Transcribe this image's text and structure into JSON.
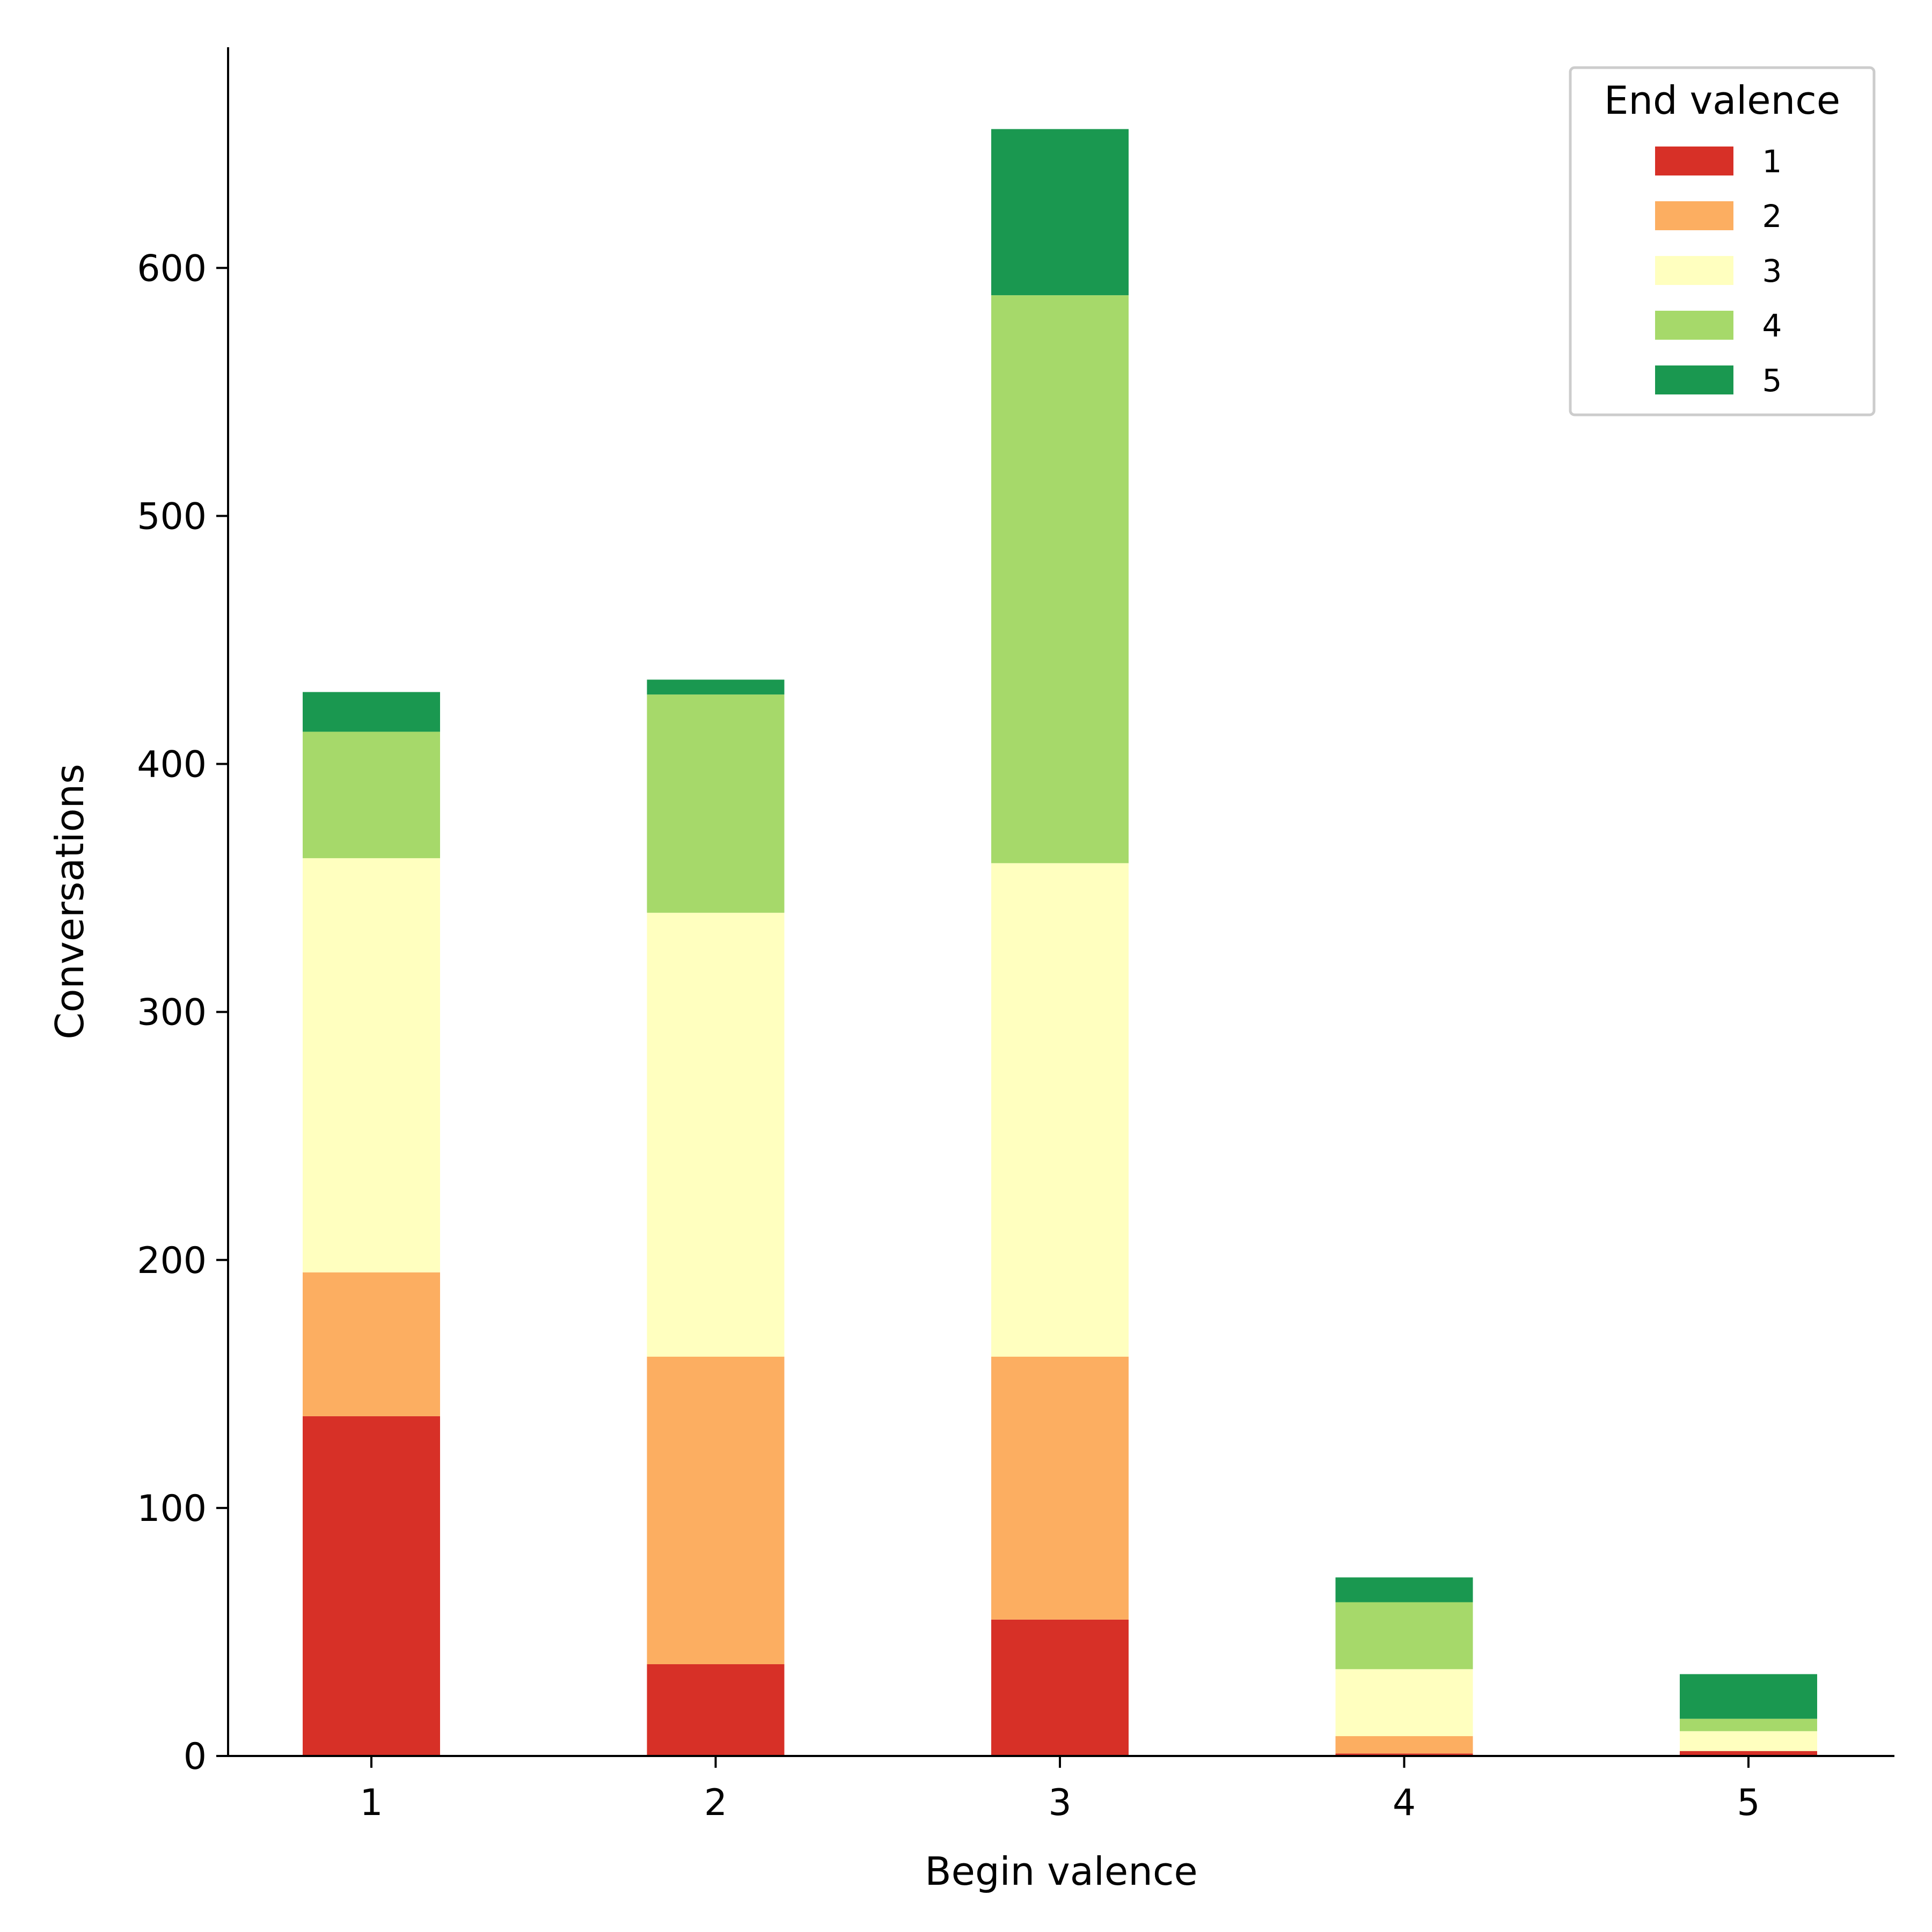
{
  "chart_data": {
    "type": "bar",
    "stacked": true,
    "xlabel": "Begin valence",
    "ylabel": "Conversations",
    "categories": [
      "1",
      "2",
      "3",
      "4",
      "5"
    ],
    "ylim": [
      0,
      689
    ],
    "yticks": [
      0,
      100,
      200,
      300,
      400,
      500,
      600
    ],
    "grid": false,
    "legend": {
      "title": "End valence",
      "placement": "top-right"
    },
    "series": [
      {
        "name": "1",
        "color": "#d73027",
        "values": [
          137,
          37,
          55,
          1,
          2
        ]
      },
      {
        "name": "2",
        "color": "#fcae61",
        "values": [
          58,
          124,
          106,
          7,
          0
        ]
      },
      {
        "name": "3",
        "color": "#ffffbf",
        "values": [
          167,
          179,
          199,
          27,
          8
        ]
      },
      {
        "name": "4",
        "color": "#a6d96a",
        "values": [
          51,
          88,
          229,
          27,
          5
        ]
      },
      {
        "name": "5",
        "color": "#1a9850",
        "values": [
          16,
          6,
          67,
          10,
          18
        ]
      }
    ]
  }
}
